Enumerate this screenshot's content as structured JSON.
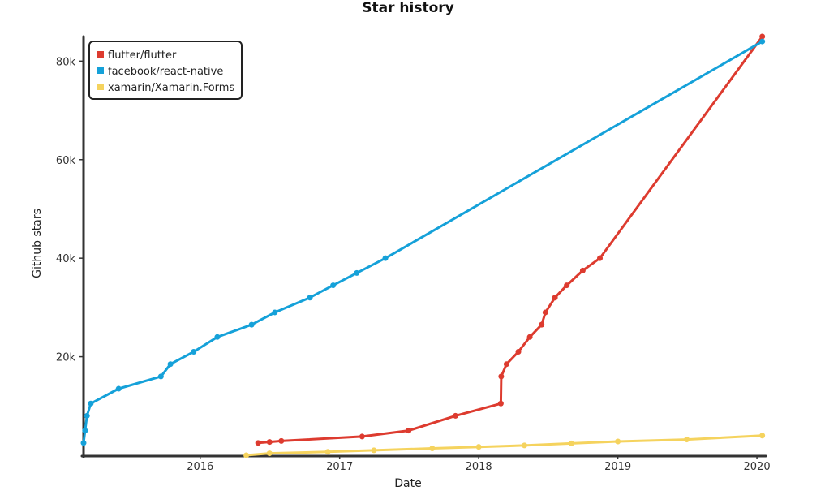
{
  "chart_data": {
    "type": "line",
    "title": "Star history",
    "xlabel": "Date",
    "ylabel": "Github stars",
    "xlim": [
      "2015-03-01",
      "2020-01-20"
    ],
    "ylim": [
      0,
      85000
    ],
    "x_ticks": [
      {
        "date": "2016-01-01",
        "label": "2016"
      },
      {
        "date": "2017-01-01",
        "label": "2017"
      },
      {
        "date": "2018-01-01",
        "label": "2018"
      },
      {
        "date": "2019-01-01",
        "label": "2019"
      },
      {
        "date": "2020-01-01",
        "label": "2020"
      }
    ],
    "y_ticks": [
      {
        "value": 20000,
        "label": "20k"
      },
      {
        "value": 40000,
        "label": "40k"
      },
      {
        "value": 60000,
        "label": "60k"
      },
      {
        "value": 80000,
        "label": "80k"
      }
    ],
    "legend_position": "top-left",
    "series": [
      {
        "name": "flutter/flutter",
        "color": "#dd3b2f",
        "points": [
          [
            "2016-06-01",
            2500
          ],
          [
            "2016-07-01",
            2700
          ],
          [
            "2016-08-01",
            2900
          ],
          [
            "2017-03-01",
            3800
          ],
          [
            "2017-07-01",
            5000
          ],
          [
            "2017-11-01",
            8000
          ],
          [
            "2018-02-28",
            10500
          ],
          [
            "2018-03-01",
            16000
          ],
          [
            "2018-03-15",
            18500
          ],
          [
            "2018-04-15",
            21000
          ],
          [
            "2018-05-15",
            24000
          ],
          [
            "2018-06-15",
            26500
          ],
          [
            "2018-06-25",
            29000
          ],
          [
            "2018-07-20",
            32000
          ],
          [
            "2018-08-20",
            34500
          ],
          [
            "2018-10-01",
            37500
          ],
          [
            "2018-11-15",
            40000
          ],
          [
            "2020-01-15",
            85000
          ]
        ]
      },
      {
        "name": "facebook/react-native",
        "color": "#15a1d9",
        "points": [
          [
            "2015-03-01",
            2500
          ],
          [
            "2015-03-05",
            5000
          ],
          [
            "2015-03-10",
            8000
          ],
          [
            "2015-03-20",
            10500
          ],
          [
            "2015-06-01",
            13500
          ],
          [
            "2015-09-20",
            16000
          ],
          [
            "2015-10-15",
            18500
          ],
          [
            "2015-12-15",
            21000
          ],
          [
            "2016-02-15",
            24000
          ],
          [
            "2016-05-15",
            26500
          ],
          [
            "2016-07-15",
            29000
          ],
          [
            "2016-10-15",
            32000
          ],
          [
            "2016-12-15",
            34500
          ],
          [
            "2017-02-15",
            37000
          ],
          [
            "2017-05-01",
            40000
          ],
          [
            "2020-01-15",
            84000
          ]
        ]
      },
      {
        "name": "xamarin/Xamarin.Forms",
        "color": "#f5d35e",
        "points": [
          [
            "2016-05-01",
            0
          ],
          [
            "2016-07-01",
            400
          ],
          [
            "2016-12-01",
            700
          ],
          [
            "2017-04-01",
            1000
          ],
          [
            "2017-09-01",
            1400
          ],
          [
            "2018-01-01",
            1700
          ],
          [
            "2018-05-01",
            2000
          ],
          [
            "2018-09-01",
            2400
          ],
          [
            "2019-01-01",
            2800
          ],
          [
            "2019-07-01",
            3200
          ],
          [
            "2020-01-15",
            4000
          ]
        ]
      }
    ]
  }
}
